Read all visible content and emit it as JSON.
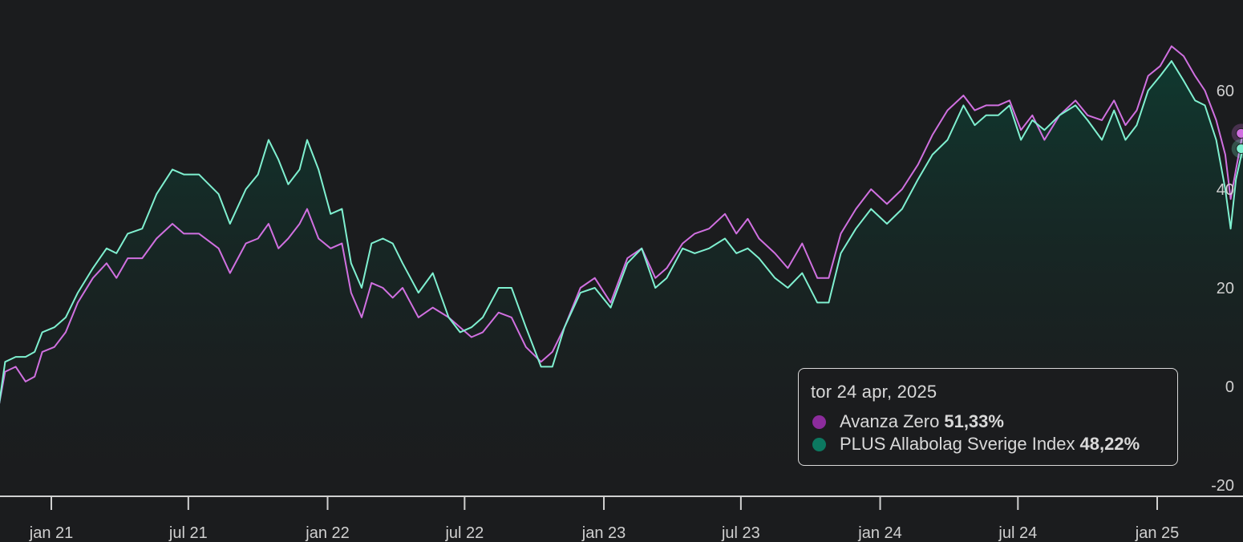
{
  "chart_data": {
    "type": "line",
    "y_axis_position": "right",
    "ylim": [
      -20,
      70
    ],
    "y_ticks": [
      -20,
      0,
      20,
      40,
      60
    ],
    "x_range": [
      "2020-10-20",
      "2025-04-24"
    ],
    "x_ticks": [
      {
        "date": "2021-01-01",
        "label": "jan 21"
      },
      {
        "date": "2021-07-01",
        "label": "jul 21"
      },
      {
        "date": "2022-01-01",
        "label": "jan 22"
      },
      {
        "date": "2022-07-01",
        "label": "jul 22"
      },
      {
        "date": "2023-01-01",
        "label": "jan 23"
      },
      {
        "date": "2023-07-01",
        "label": "jul 23"
      },
      {
        "date": "2024-01-01",
        "label": "jan 24"
      },
      {
        "date": "2024-07-01",
        "label": "jul 24"
      },
      {
        "date": "2025-01-01",
        "label": "jan 25"
      }
    ],
    "series": [
      {
        "name": "Avanza Zero",
        "color": "#d070e0",
        "legend_color": "#8c2c9c",
        "points": [
          [
            "2020-10-20",
            -7
          ],
          [
            "2020-11-01",
            3
          ],
          [
            "2020-11-15",
            4
          ],
          [
            "2020-11-28",
            1
          ],
          [
            "2020-12-10",
            2
          ],
          [
            "2020-12-20",
            7
          ],
          [
            "2021-01-05",
            8
          ],
          [
            "2021-01-20",
            11
          ],
          [
            "2021-02-05",
            17
          ],
          [
            "2021-02-25",
            22
          ],
          [
            "2021-03-15",
            25
          ],
          [
            "2021-03-28",
            22
          ],
          [
            "2021-04-12",
            26
          ],
          [
            "2021-05-01",
            26
          ],
          [
            "2021-05-20",
            30
          ],
          [
            "2021-06-10",
            33
          ],
          [
            "2021-06-25",
            31
          ],
          [
            "2021-07-15",
            31
          ],
          [
            "2021-08-10",
            28
          ],
          [
            "2021-08-25",
            23
          ],
          [
            "2021-09-15",
            29
          ],
          [
            "2021-10-01",
            30
          ],
          [
            "2021-10-15",
            33
          ],
          [
            "2021-10-28",
            28
          ],
          [
            "2021-11-10",
            30
          ],
          [
            "2021-11-25",
            33
          ],
          [
            "2021-12-05",
            36
          ],
          [
            "2021-12-20",
            30
          ],
          [
            "2022-01-05",
            28
          ],
          [
            "2022-01-20",
            29
          ],
          [
            "2022-02-01",
            19
          ],
          [
            "2022-02-15",
            14
          ],
          [
            "2022-02-28",
            21
          ],
          [
            "2022-03-15",
            20
          ],
          [
            "2022-03-28",
            18
          ],
          [
            "2022-04-10",
            20
          ],
          [
            "2022-05-01",
            14
          ],
          [
            "2022-05-20",
            16
          ],
          [
            "2022-06-10",
            14
          ],
          [
            "2022-06-25",
            12
          ],
          [
            "2022-07-10",
            10
          ],
          [
            "2022-07-25",
            11
          ],
          [
            "2022-08-15",
            15
          ],
          [
            "2022-09-01",
            14
          ],
          [
            "2022-09-20",
            8
          ],
          [
            "2022-10-10",
            5
          ],
          [
            "2022-10-25",
            7
          ],
          [
            "2022-11-10",
            12
          ],
          [
            "2022-12-01",
            20
          ],
          [
            "2022-12-20",
            22
          ],
          [
            "2023-01-10",
            17
          ],
          [
            "2023-02-01",
            26
          ],
          [
            "2023-02-20",
            28
          ],
          [
            "2023-03-10",
            22
          ],
          [
            "2023-03-25",
            24
          ],
          [
            "2023-04-15",
            29
          ],
          [
            "2023-05-01",
            31
          ],
          [
            "2023-05-20",
            32
          ],
          [
            "2023-06-10",
            35
          ],
          [
            "2023-06-25",
            31
          ],
          [
            "2023-07-10",
            34
          ],
          [
            "2023-07-25",
            30
          ],
          [
            "2023-08-15",
            27
          ],
          [
            "2023-09-01",
            24
          ],
          [
            "2023-09-20",
            29
          ],
          [
            "2023-10-10",
            22
          ],
          [
            "2023-10-25",
            22
          ],
          [
            "2023-11-10",
            31
          ],
          [
            "2023-11-30",
            36
          ],
          [
            "2023-12-20",
            40
          ],
          [
            "2024-01-10",
            37
          ],
          [
            "2024-01-30",
            40
          ],
          [
            "2024-02-20",
            45
          ],
          [
            "2024-03-10",
            51
          ],
          [
            "2024-03-30",
            56
          ],
          [
            "2024-04-20",
            59
          ],
          [
            "2024-05-05",
            56
          ],
          [
            "2024-05-20",
            57
          ],
          [
            "2024-06-05",
            57
          ],
          [
            "2024-06-20",
            58
          ],
          [
            "2024-07-05",
            52
          ],
          [
            "2024-07-20",
            55
          ],
          [
            "2024-08-05",
            50
          ],
          [
            "2024-08-25",
            55
          ],
          [
            "2024-09-15",
            58
          ],
          [
            "2024-10-01",
            55
          ],
          [
            "2024-10-20",
            54
          ],
          [
            "2024-11-05",
            58
          ],
          [
            "2024-11-20",
            53
          ],
          [
            "2024-12-05",
            56
          ],
          [
            "2024-12-20",
            63
          ],
          [
            "2025-01-05",
            65
          ],
          [
            "2025-01-20",
            69
          ],
          [
            "2025-02-05",
            67
          ],
          [
            "2025-02-20",
            63
          ],
          [
            "2025-03-05",
            60
          ],
          [
            "2025-03-20",
            54
          ],
          [
            "2025-04-01",
            47
          ],
          [
            "2025-04-08",
            38
          ],
          [
            "2025-04-15",
            44
          ],
          [
            "2025-04-24",
            51.33
          ]
        ]
      },
      {
        "name": "PLUS Allabolag Sverige Index",
        "color": "#7ff0d0",
        "legend_color": "#0c7860",
        "points": [
          [
            "2020-10-20",
            -8
          ],
          [
            "2020-11-01",
            5
          ],
          [
            "2020-11-15",
            6
          ],
          [
            "2020-11-28",
            6
          ],
          [
            "2020-12-10",
            7
          ],
          [
            "2020-12-20",
            11
          ],
          [
            "2021-01-05",
            12
          ],
          [
            "2021-01-20",
            14
          ],
          [
            "2021-02-05",
            19
          ],
          [
            "2021-02-25",
            24
          ],
          [
            "2021-03-15",
            28
          ],
          [
            "2021-03-28",
            27
          ],
          [
            "2021-04-12",
            31
          ],
          [
            "2021-05-01",
            32
          ],
          [
            "2021-05-20",
            39
          ],
          [
            "2021-06-10",
            44
          ],
          [
            "2021-06-25",
            43
          ],
          [
            "2021-07-15",
            43
          ],
          [
            "2021-08-10",
            39
          ],
          [
            "2021-08-25",
            33
          ],
          [
            "2021-09-15",
            40
          ],
          [
            "2021-10-01",
            43
          ],
          [
            "2021-10-15",
            50
          ],
          [
            "2021-10-28",
            46
          ],
          [
            "2021-11-10",
            41
          ],
          [
            "2021-11-25",
            44
          ],
          [
            "2021-12-05",
            50
          ],
          [
            "2021-12-20",
            44
          ],
          [
            "2022-01-05",
            35
          ],
          [
            "2022-01-20",
            36
          ],
          [
            "2022-02-01",
            25
          ],
          [
            "2022-02-15",
            20
          ],
          [
            "2022-02-28",
            29
          ],
          [
            "2022-03-15",
            30
          ],
          [
            "2022-03-28",
            29
          ],
          [
            "2022-04-10",
            25
          ],
          [
            "2022-05-01",
            19
          ],
          [
            "2022-05-20",
            23
          ],
          [
            "2022-06-10",
            14
          ],
          [
            "2022-06-25",
            11
          ],
          [
            "2022-07-10",
            12
          ],
          [
            "2022-07-25",
            14
          ],
          [
            "2022-08-15",
            20
          ],
          [
            "2022-09-01",
            20
          ],
          [
            "2022-09-20",
            12
          ],
          [
            "2022-10-10",
            4
          ],
          [
            "2022-10-25",
            4
          ],
          [
            "2022-11-10",
            12
          ],
          [
            "2022-12-01",
            19
          ],
          [
            "2022-12-20",
            20
          ],
          [
            "2023-01-10",
            16
          ],
          [
            "2023-02-01",
            25
          ],
          [
            "2023-02-20",
            28
          ],
          [
            "2023-03-10",
            20
          ],
          [
            "2023-03-25",
            22
          ],
          [
            "2023-04-15",
            28
          ],
          [
            "2023-05-01",
            27
          ],
          [
            "2023-05-20",
            28
          ],
          [
            "2023-06-10",
            30
          ],
          [
            "2023-06-25",
            27
          ],
          [
            "2023-07-10",
            28
          ],
          [
            "2023-07-25",
            26
          ],
          [
            "2023-08-15",
            22
          ],
          [
            "2023-09-01",
            20
          ],
          [
            "2023-09-20",
            23
          ],
          [
            "2023-10-10",
            17
          ],
          [
            "2023-10-25",
            17
          ],
          [
            "2023-11-10",
            27
          ],
          [
            "2023-11-30",
            32
          ],
          [
            "2023-12-20",
            36
          ],
          [
            "2024-01-10",
            33
          ],
          [
            "2024-01-30",
            36
          ],
          [
            "2024-02-20",
            42
          ],
          [
            "2024-03-10",
            47
          ],
          [
            "2024-03-30",
            50
          ],
          [
            "2024-04-20",
            57
          ],
          [
            "2024-05-05",
            53
          ],
          [
            "2024-05-20",
            55
          ],
          [
            "2024-06-05",
            55
          ],
          [
            "2024-06-20",
            57
          ],
          [
            "2024-07-05",
            50
          ],
          [
            "2024-07-20",
            54
          ],
          [
            "2024-08-05",
            52
          ],
          [
            "2024-08-25",
            55
          ],
          [
            "2024-09-15",
            57
          ],
          [
            "2024-10-01",
            54
          ],
          [
            "2024-10-20",
            50
          ],
          [
            "2024-11-05",
            56
          ],
          [
            "2024-11-20",
            50
          ],
          [
            "2024-12-05",
            53
          ],
          [
            "2024-12-20",
            60
          ],
          [
            "2025-01-05",
            63
          ],
          [
            "2025-01-20",
            66
          ],
          [
            "2025-02-05",
            62
          ],
          [
            "2025-02-20",
            58
          ],
          [
            "2025-03-05",
            57
          ],
          [
            "2025-03-20",
            50
          ],
          [
            "2025-04-01",
            40
          ],
          [
            "2025-04-08",
            32
          ],
          [
            "2025-04-15",
            42
          ],
          [
            "2025-04-24",
            48.22
          ]
        ]
      }
    ],
    "tooltip": {
      "date": "tor 24 apr, 2025",
      "rows": [
        {
          "name": "Avanza Zero",
          "value": "51,33%",
          "dot_color": "#8c2c9c"
        },
        {
          "name": "PLUS Allabolag Sverige Index",
          "value": "48,22%",
          "dot_color": "#0c7860"
        }
      ]
    }
  },
  "colors": {
    "background": "#1b1c1e",
    "area_fill": "#0f3a30",
    "axis": "#d0d0d0",
    "tick_text": "#d0d0d0"
  }
}
